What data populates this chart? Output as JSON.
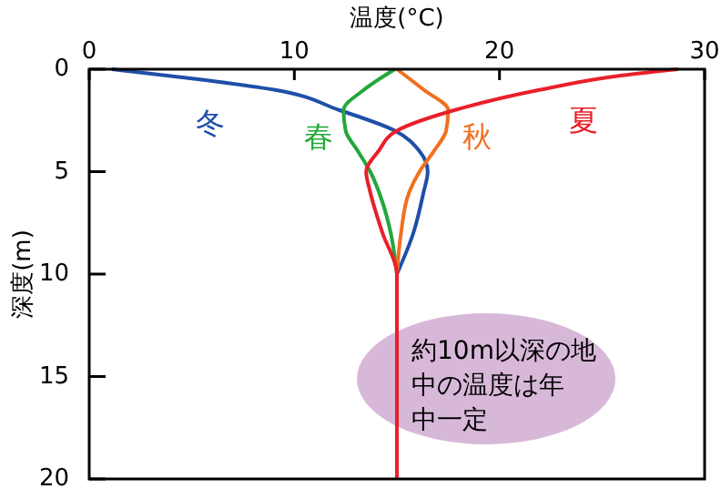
{
  "chart_data": {
    "type": "line",
    "xlabel": "温度(°C)",
    "ylabel": "深度(m)",
    "xlim": [
      0,
      30
    ],
    "xticks": [
      0,
      10,
      20,
      30
    ],
    "ylim": [
      20,
      0
    ],
    "yticks": [
      0,
      5,
      10,
      15,
      20
    ],
    "grid": false,
    "marker": "none",
    "line_style": "solid",
    "series": [
      {
        "name": "冬",
        "color": "#1f4fa8",
        "x": [
          1.1,
          5.4,
          9.0,
          12.2,
          14.9,
          16.1,
          16.5,
          16.3,
          15.8,
          15.0
        ],
        "values": [
          0,
          0.5,
          1,
          2,
          3,
          4,
          5,
          6,
          8,
          10
        ]
      },
      {
        "name": "春",
        "color": "#22a83a",
        "x": [
          14.9,
          13.4,
          12.4,
          12.5,
          13.1,
          13.7,
          14.3,
          14.7,
          15.0
        ],
        "values": [
          0,
          1,
          2,
          3,
          4,
          5,
          6.5,
          8,
          10
        ]
      },
      {
        "name": "秋",
        "color": "#f07020",
        "x": [
          15.0,
          16.3,
          17.5,
          17.4,
          16.8,
          16.1,
          15.6,
          15.2,
          15.0
        ],
        "values": [
          0,
          1,
          2,
          3,
          4,
          5,
          6,
          8,
          10
        ]
      },
      {
        "name": "夏",
        "color": "#e8202a",
        "x": [
          28.7,
          26.0,
          22.0,
          17.8,
          15.0,
          14.1,
          13.5,
          13.7,
          14.3,
          15.0,
          15.0,
          15.0
        ],
        "values": [
          0,
          0.3,
          1,
          2,
          3,
          4,
          5,
          6,
          8,
          10,
          15,
          20
        ]
      }
    ],
    "annotations": [
      "約10m以深の地中の温度は年中一定"
    ]
  }
}
